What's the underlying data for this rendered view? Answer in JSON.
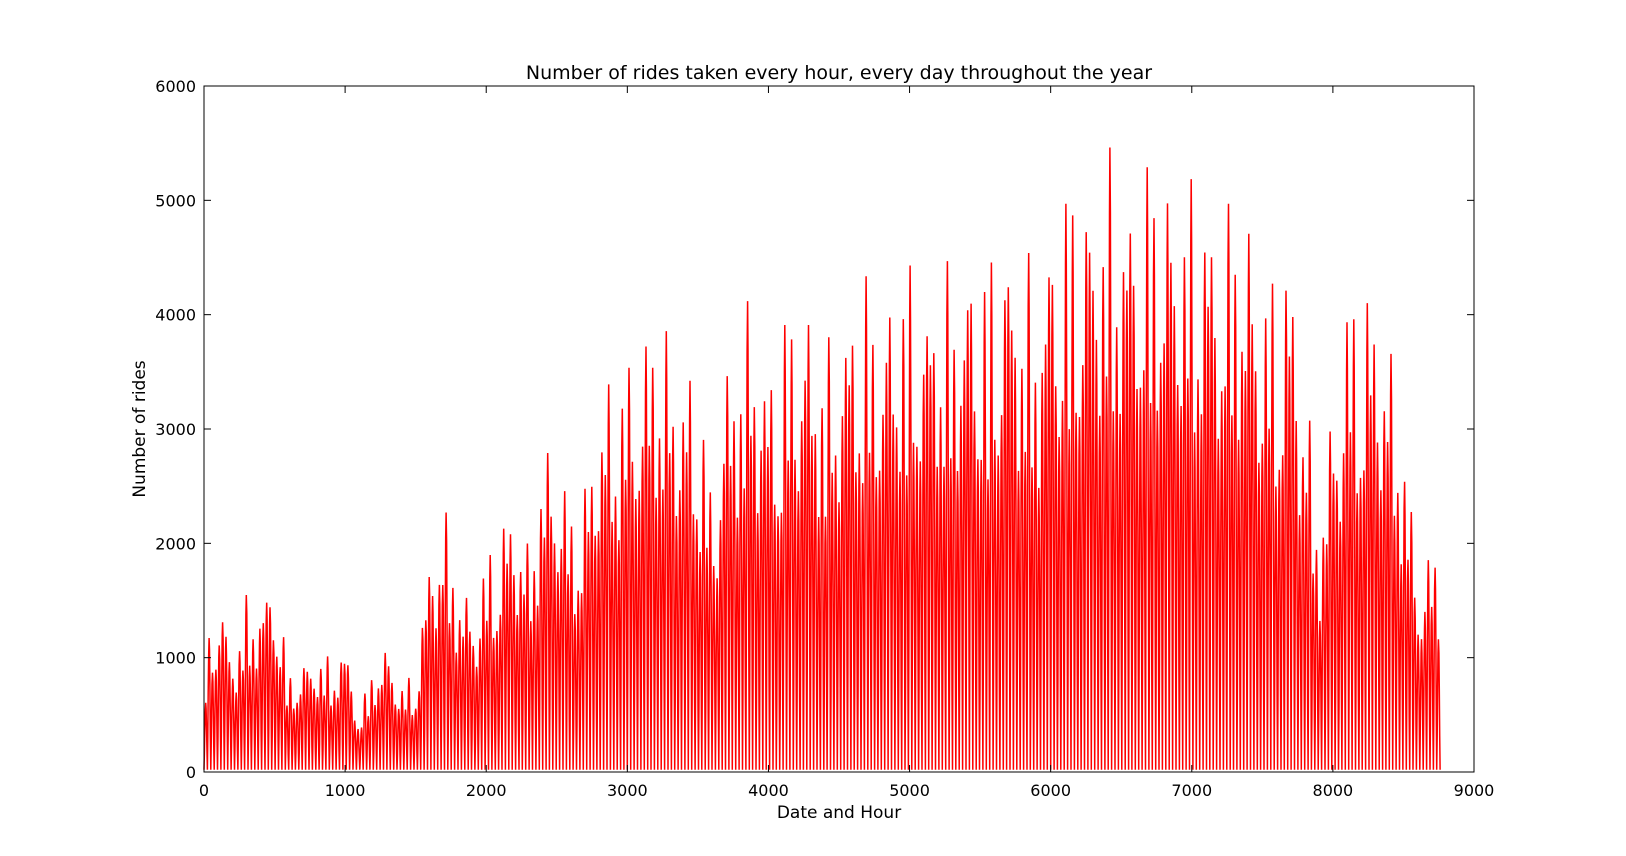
{
  "chart_data": {
    "type": "line",
    "title": "Number of rides taken every hour, every day throughout the year",
    "xlabel": "Date and Hour",
    "ylabel": "Number of rides",
    "xlim": [
      0,
      9000
    ],
    "ylim": [
      0,
      6000
    ],
    "x_ticks": [
      0,
      1000,
      2000,
      3000,
      4000,
      5000,
      6000,
      7000,
      8000,
      9000
    ],
    "y_ticks": [
      0,
      1000,
      2000,
      3000,
      4000,
      5000,
      6000
    ],
    "x_tick_labels": [
      "0",
      "1000",
      "2000",
      "3000",
      "4000",
      "5000",
      "6000",
      "7000",
      "8000",
      "9000"
    ],
    "y_tick_labels": [
      "0",
      "1000",
      "2000",
      "3000",
      "4000",
      "5000",
      "6000"
    ],
    "grid": false,
    "line_color": "#ff0000",
    "series": [
      {
        "x": [
          0,
          100,
          200,
          300,
          400,
          500,
          600,
          700,
          800,
          900,
          1000,
          1100,
          1200,
          1300,
          1400,
          1500,
          1600,
          1700,
          1800,
          1900,
          2000,
          2100,
          2200,
          2300,
          2400,
          2500,
          2600,
          2700,
          2800,
          2900,
          3000,
          3100,
          3200,
          3300,
          3400,
          3500,
          3600,
          3700,
          3800,
          3900,
          4000,
          4100,
          4200,
          4300,
          4400,
          4500,
          4600,
          4700,
          4800,
          4900,
          5000,
          5100,
          5200,
          5300,
          5400,
          5500,
          5600,
          5700,
          5800,
          5900,
          6000,
          6100,
          6200,
          6300,
          6400,
          6500,
          6600,
          6700,
          6800,
          6900,
          7000,
          7100,
          7200,
          7300,
          7400,
          7500,
          7600,
          7700,
          7800,
          7900,
          8000,
          8100,
          8200,
          8300,
          8400,
          8500,
          8600,
          8700,
          8760
        ],
        "peak_envelope": [
          1000,
          1700,
          1100,
          1550,
          1600,
          1800,
          900,
          1000,
          1100,
          1000,
          1200,
          500,
          1000,
          1150,
          800,
          900,
          2000,
          2400,
          1800,
          1500,
          1950,
          2250,
          2500,
          2000,
          2950,
          2950,
          2400,
          2600,
          3450,
          3550,
          3750,
          3800,
          4300,
          3850,
          3650,
          3650,
          2500,
          3650,
          4100,
          4250,
          3600,
          4100,
          4250,
          4200,
          3800,
          4000,
          4350,
          4450,
          4100,
          4550,
          4550,
          4300,
          4600,
          4450,
          4700,
          4550,
          4700,
          4900,
          4650,
          4400,
          5000,
          5250,
          5300,
          5350,
          5500,
          5450,
          5250,
          5500,
          5500,
          5250,
          5300,
          5300,
          4800,
          5250,
          5050,
          4450,
          4500,
          4750,
          3600,
          2300,
          3350,
          4300,
          4350,
          4400,
          3850,
          3150,
          1800,
          2050,
          2050
        ],
        "trough": 20
      }
    ]
  }
}
